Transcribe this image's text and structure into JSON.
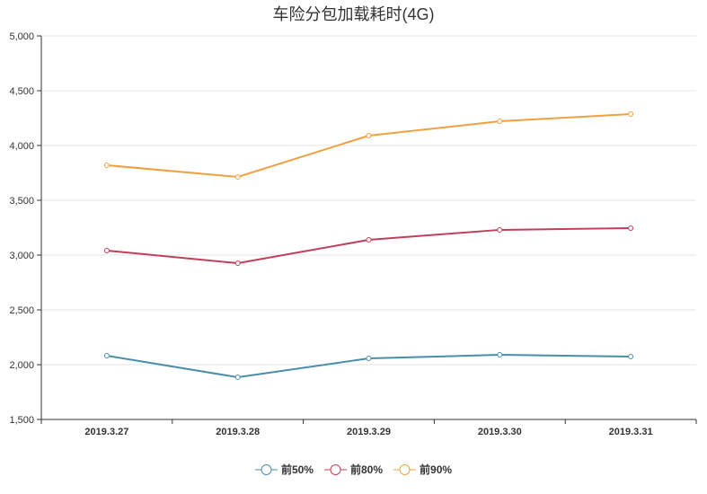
{
  "chart_data": {
    "type": "line",
    "title": "车险分包加载耗时(4G)",
    "categories": [
      "2019.3.27",
      "2019.3.28",
      "2019.3.29",
      "2019.3.30",
      "2019.3.31"
    ],
    "ylim": [
      1500,
      5000
    ],
    "yticks": [
      "1,500",
      "2,000",
      "2,500",
      "3,000",
      "3,500",
      "4,000",
      "4,500",
      "5,000"
    ],
    "grid": true,
    "legend_position": "bottom",
    "series": [
      {
        "name": "前50%",
        "color": "#4a8dab",
        "values": [
          2082,
          1885,
          2057,
          2090,
          2074
        ]
      },
      {
        "name": "前80%",
        "color": "#c23f5a",
        "values": [
          3041,
          2926,
          3139,
          3230,
          3246
        ]
      },
      {
        "name": "前90%",
        "color": "#f0a040",
        "values": [
          3820,
          3713,
          4090,
          4221,
          4287
        ]
      }
    ]
  }
}
